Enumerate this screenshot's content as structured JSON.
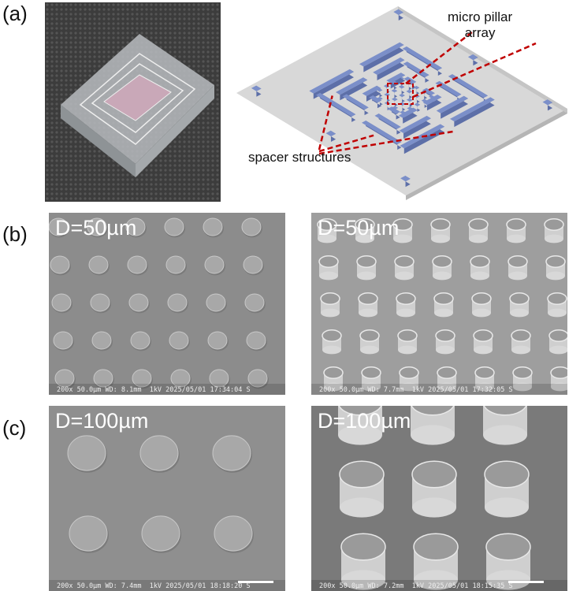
{
  "panel_labels": {
    "a": "(a)",
    "b": "(b)",
    "c": "(c)"
  },
  "schematic": {
    "pillar_label_line1": "micro pillar",
    "pillar_label_line2": "array",
    "spacer_label": "spacer structures",
    "structure_color": "#7b8fc9",
    "plate_color": "#d8d8d8",
    "annotation_color": "#c00000"
  },
  "sem": {
    "b_left": {
      "label": "D=50µm",
      "info": "200x 50.0µm WD: 8.1mm  1kV 2025/05/01 17:34:04 S"
    },
    "b_right": {
      "label": "D=50µm",
      "info": "200x 50.0µm WD: 7.7mm  1kV 2025/05/01 17:32:05 S"
    },
    "c_left": {
      "label": "D=100µm",
      "info": "200x 50.0µm WD: 7.4mm  1kV 2025/05/01 18:18:20 S"
    },
    "c_right": {
      "label": "D=100µm",
      "info": "200x 50.0µm WD: 7.2mm  1kV 2025/05/01 18:15:35 S"
    }
  }
}
